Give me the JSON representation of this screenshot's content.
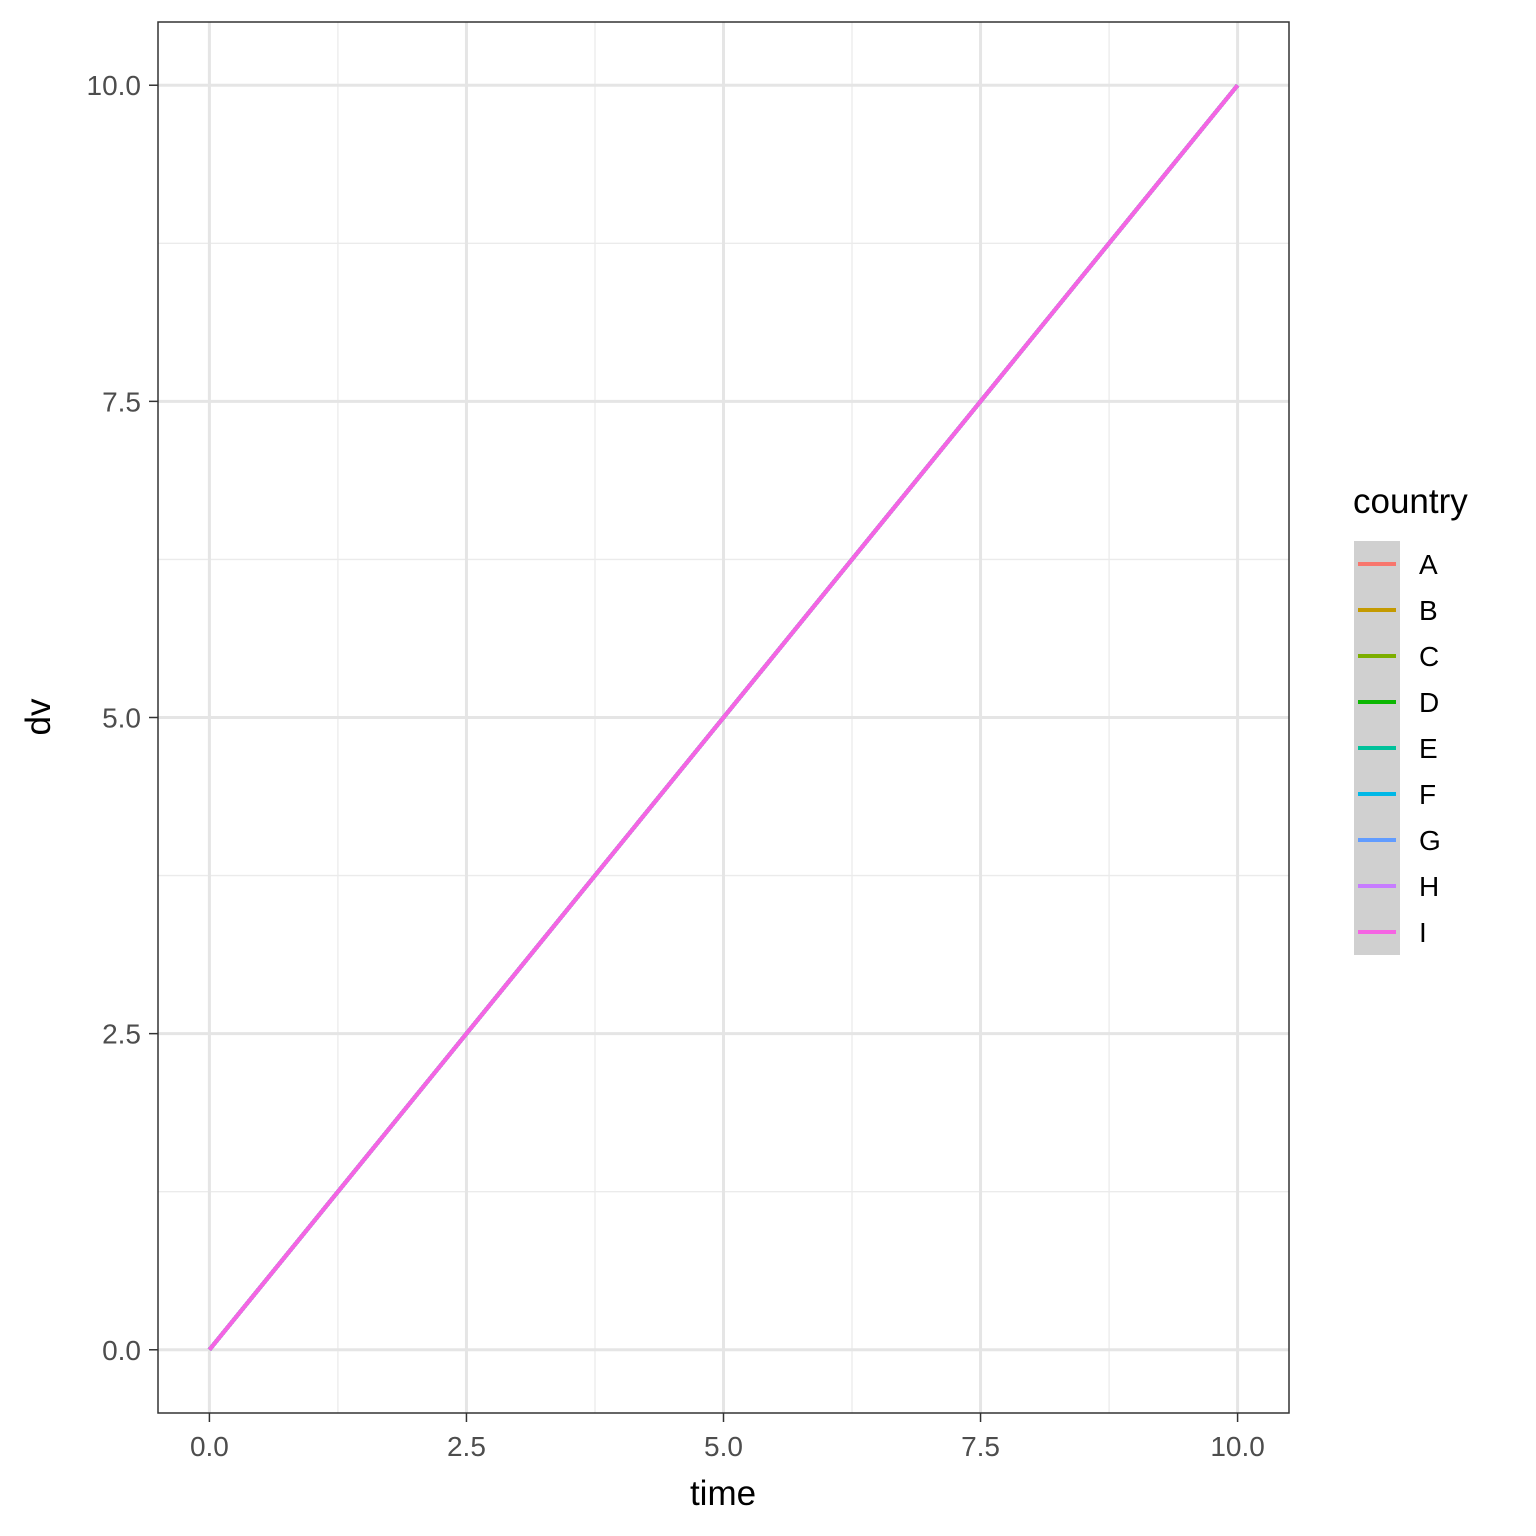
{
  "chart_data": {
    "type": "line",
    "xlabel": "time",
    "ylabel": "dv",
    "xlim": [
      -0.5,
      10.5
    ],
    "ylim": [
      -0.5,
      10.5
    ],
    "x_ticks": [
      0,
      2.5,
      5,
      7.5,
      10
    ],
    "y_ticks": [
      0,
      2.5,
      5,
      7.5,
      10
    ],
    "x_tick_labels": [
      "0.0",
      "2.5",
      "5.0",
      "7.5",
      "10.0"
    ],
    "y_tick_labels": [
      "0.0",
      "2.5",
      "5.0",
      "7.5",
      "10.0"
    ],
    "grid": true,
    "legend": {
      "title": "country",
      "position": "right"
    },
    "series": [
      {
        "name": "A",
        "color": "#F8766D",
        "x": [
          0,
          10
        ],
        "y": [
          0,
          10
        ]
      },
      {
        "name": "B",
        "color": "#C49A00",
        "x": [
          0,
          10
        ],
        "y": [
          0,
          10
        ]
      },
      {
        "name": "C",
        "color": "#7CAE00",
        "x": [
          0,
          10
        ],
        "y": [
          0,
          10
        ]
      },
      {
        "name": "D",
        "color": "#0CB702",
        "x": [
          0,
          10
        ],
        "y": [
          0,
          10
        ]
      },
      {
        "name": "E",
        "color": "#00C19A",
        "x": [
          0,
          10
        ],
        "y": [
          0,
          10
        ]
      },
      {
        "name": "F",
        "color": "#00B8E7",
        "x": [
          0,
          10
        ],
        "y": [
          0,
          10
        ]
      },
      {
        "name": "G",
        "color": "#619CFF",
        "x": [
          0,
          10
        ],
        "y": [
          0,
          10
        ]
      },
      {
        "name": "H",
        "color": "#C77CFF",
        "x": [
          0,
          10
        ],
        "y": [
          0,
          10
        ]
      },
      {
        "name": "I",
        "color": "#F564E3",
        "x": [
          0,
          10
        ],
        "y": [
          0,
          10
        ]
      }
    ]
  }
}
